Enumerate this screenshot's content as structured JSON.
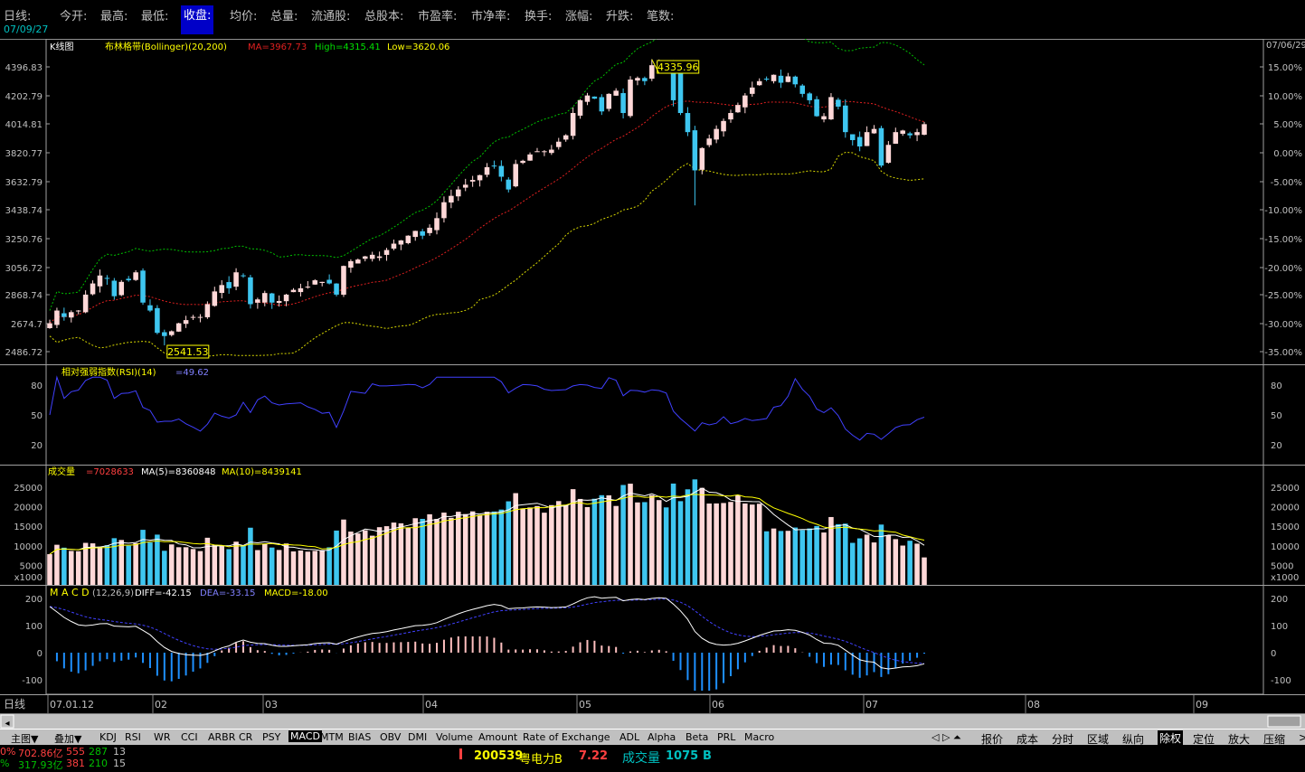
{
  "topbar": {
    "fields": [
      "日线:",
      "今开:",
      "最高:",
      "最低:",
      "收盘:",
      "均价:",
      "总量:",
      "流通股:",
      "总股本:",
      "市盈率:",
      "市净率:",
      "换手:",
      "涨幅:",
      "升跌:",
      "笔数:"
    ],
    "date": "07/09/27"
  },
  "chart_data": {
    "type": "candlestick",
    "top_right_date": "07/06/29",
    "x_tick_labels": [
      "07.01.12",
      "02",
      "03",
      "04",
      "05",
      "06",
      "07",
      "08",
      "09"
    ],
    "price_panel": {
      "label": "K线图",
      "indicator": "布林格带(Bollinger)(20,200)",
      "ma": "MA=3967.73",
      "high": "High=4315.41",
      "low": "Low=3620.06",
      "y_ticks": [
        "4396.83",
        "4202.79",
        "4014.81",
        "3820.77",
        "3632.79",
        "3438.74",
        "3250.76",
        "3056.72",
        "2868.74",
        "2674.7",
        "2486.72"
      ],
      "pct_ticks": [
        "15.00%",
        "10.00%",
        "5.00%",
        "0.00%",
        "-5.00%",
        "-10.00%",
        "-15.00%",
        "-20.00%",
        "-25.00%",
        "-30.00%",
        "-35.00%"
      ],
      "ylim": [
        2468,
        4420
      ],
      "max_label": "4335.96",
      "min_label": "2541.53",
      "closes": [
        2680,
        2760,
        2720,
        2750,
        2760,
        2860,
        2930,
        2980,
        2960,
        2850,
        2940,
        2950,
        3000,
        2810,
        2760,
        2620,
        2600,
        2630,
        2680,
        2700,
        2720,
        2720,
        2800,
        2880,
        2920,
        2900,
        3000,
        2980,
        2800,
        2830,
        2870,
        2810,
        2820,
        2860,
        2890,
        2900,
        2910,
        2950,
        2940,
        2930,
        2860,
        3040,
        3070,
        3080,
        3100,
        3110,
        3100,
        3140,
        3180,
        3200,
        3230,
        3260,
        3230,
        3280,
        3340,
        3440,
        3480,
        3520,
        3550,
        3580,
        3610,
        3660,
        3670,
        3600,
        3520,
        3680,
        3700,
        3740,
        3760,
        3760,
        3770,
        3820,
        3860,
        4000,
        4080,
        4110,
        4090,
        4010,
        4120,
        4140,
        4000,
        4210,
        4220,
        4200,
        4300,
        4320,
        4300,
        4080,
        4000,
        3880,
        3640,
        3780,
        3840,
        3900,
        3950,
        4000,
        4050,
        4110,
        4160,
        4200,
        4210,
        4240,
        4190,
        4230,
        4180,
        4120,
        4080,
        3980,
        3980,
        4100,
        4040,
        3880,
        3830,
        3790,
        3880,
        3900,
        3670,
        3800,
        3880,
        3890,
        3860,
        3880,
        3930
      ]
    },
    "rsi_panel": {
      "label": "相对强弱指数(RSI)(14)",
      "value": "=49.62",
      "y_ticks": [
        "80",
        "50",
        "20"
      ],
      "ylim": [
        0,
        100
      ]
    },
    "vol_panel": {
      "label": "成交量",
      "vol": "=7028633",
      "ma5": "MA(5)=8360848",
      "ma10": "MA(10)=8439141",
      "y_ticks": [
        "25000",
        "20000",
        "15000",
        "10000",
        "5000"
      ],
      "unit": "x1000",
      "ylim": [
        0,
        28000
      ]
    },
    "macd_panel": {
      "label": "M A C D",
      "params": "(12,26,9)",
      "diff": "DIFF=-42.15",
      "dea": "DEA=-33.15",
      "macd": "MACD=-18.00",
      "y_ticks": [
        "200",
        "100",
        "0",
        "-100"
      ],
      "ylim": [
        -150,
        220
      ]
    }
  },
  "bottomnav": {
    "tabs": [
      "主图▼",
      "叠加▼",
      "KDJ",
      "RSI",
      "WR",
      "CCI",
      "ARBR",
      "CR",
      "PSY",
      "MACD",
      "MTM",
      "BIAS",
      "OBV",
      "DMI",
      "Volume",
      "Amount",
      "Rate of Exchange",
      "ADL",
      "Alpha",
      "Beta",
      "PRL",
      "Macro"
    ],
    "selected": "MACD",
    "right": [
      "报价",
      "成本",
      "分时",
      "区域",
      "纵向",
      "除权",
      "定位",
      "放大",
      "压缩",
      ">>"
    ],
    "right_selected": "除权",
    "arrows": "◁ ▷ ⏶"
  },
  "status": {
    "row1": [
      "0%",
      "702.86亿",
      "555",
      "287",
      "13"
    ],
    "row2": [
      "%",
      "317.93亿",
      "381",
      "210",
      "15"
    ],
    "stock_code": "200539",
    "stock_name": "粤电力B",
    "stock_price": "7.22",
    "vol_label": "成交量",
    "vol_value": "1075",
    "vol_suffix": "B"
  },
  "colors": {
    "up": "#ffd8d8",
    "down": "#3ec6f0",
    "ma": "#e02020",
    "upper": "#00c000",
    "lower": "#d8d800",
    "rsi": "#4040ff",
    "diff": "#ffffff",
    "dea": "#4040ff"
  }
}
